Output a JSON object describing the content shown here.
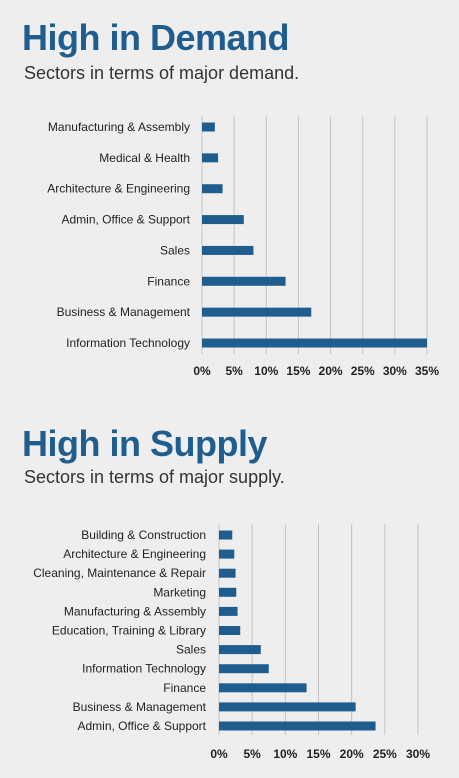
{
  "demand": {
    "title": "High in Demand",
    "subtitle": "Sectors in terms of major demand."
  },
  "supply": {
    "title": "High in Supply",
    "subtitle": "Sectors in terms of major supply."
  },
  "colors": {
    "bar": "#1f5d8f",
    "title": "#1f5d8f",
    "grid": "#c4c4c4",
    "background": "#eeeeee"
  },
  "chart_data": [
    {
      "type": "bar",
      "orientation": "horizontal",
      "categories": [
        "Manufacturing & Assembly",
        "Medical & Health",
        "Architecture & Engineering",
        "Admin, Office & Support",
        "Sales",
        "Finance",
        "Business & Management",
        "Information Technology"
      ],
      "values": [
        2,
        2.5,
        3.2,
        6.5,
        8,
        13,
        17,
        35
      ],
      "xlim": [
        0,
        35
      ],
      "xticks": [
        "0%",
        "5%",
        "10%",
        "15%",
        "20%",
        "25%",
        "30%",
        "35%"
      ],
      "grid": "vertical"
    },
    {
      "type": "bar",
      "orientation": "horizontal",
      "categories": [
        "Building & Construction",
        "Architecture & Engineering",
        "Cleaning, Maintenance & Repair",
        "Marketing",
        "Manufacturing & Assembly",
        "Education, Training & Library",
        "Sales",
        "Information Technology",
        "Finance",
        "Business & Management",
        "Admin, Office & Support"
      ],
      "values": [
        2,
        2.3,
        2.5,
        2.6,
        2.8,
        3.2,
        6.3,
        7.5,
        13.2,
        20.6,
        23.6
      ],
      "xlim": [
        0,
        30
      ],
      "xticks": [
        "0%",
        "5%",
        "10%",
        "15%",
        "20%",
        "25%",
        "30%"
      ],
      "grid": "vertical"
    }
  ]
}
